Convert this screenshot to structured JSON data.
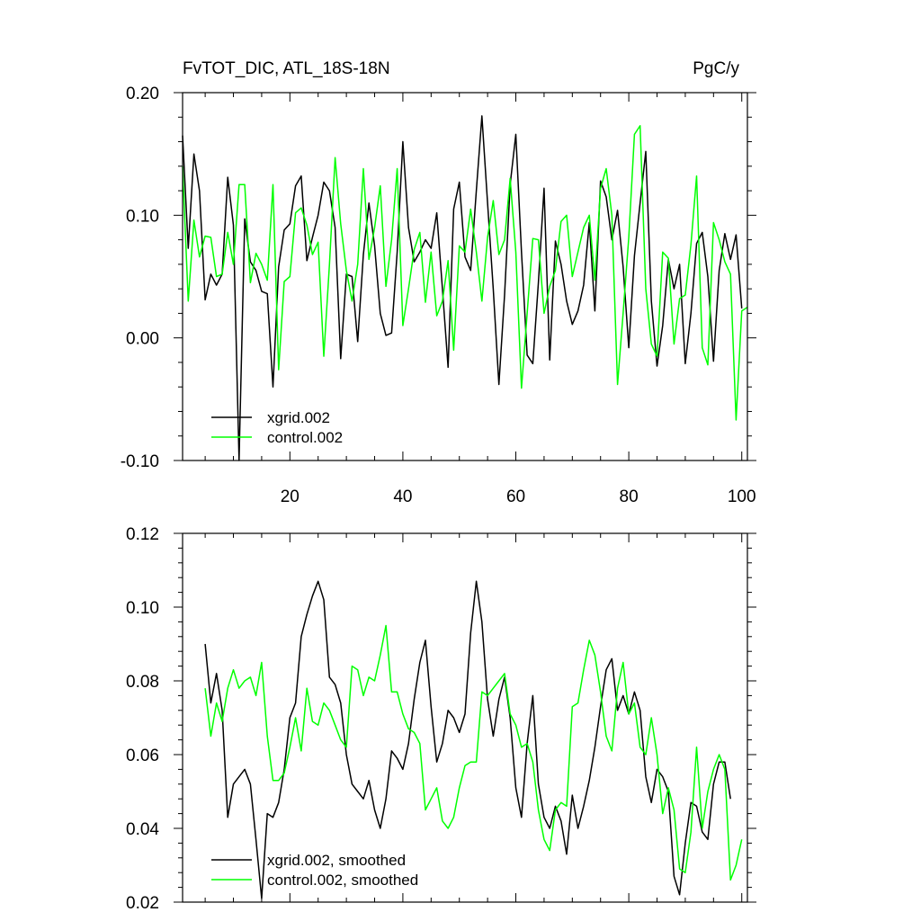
{
  "chart_data": [
    {
      "type": "line",
      "title": "FvTOT_DIC, ATL_18S-18N",
      "units": "PgC/y",
      "xlim": [
        1,
        101
      ],
      "ylim": [
        -0.1,
        0.2
      ],
      "xticks": [
        20,
        40,
        60,
        80,
        100
      ],
      "xtick_labels": [
        "20",
        "40",
        "60",
        "80",
        "100"
      ],
      "yticks": [
        -0.1,
        0.0,
        0.1,
        0.2
      ],
      "ytick_labels": [
        "-0.10",
        "0.00",
        "0.10",
        "0.20"
      ],
      "grid": false,
      "legend_position": "bottom-left",
      "x_start": 1,
      "series": [
        {
          "name": "xgrid.002",
          "color": "#000000",
          "values": [
            0.165,
            0.073,
            0.15,
            0.12,
            0.031,
            0.052,
            0.043,
            0.052,
            0.131,
            0.092,
            -0.1,
            0.097,
            0.062,
            0.055,
            0.038,
            0.036,
            -0.04,
            0.058,
            0.088,
            0.093,
            0.124,
            0.132,
            0.063,
            0.082,
            0.1,
            0.127,
            0.12,
            0.09,
            -0.017,
            0.052,
            0.05,
            -0.003,
            0.068,
            0.11,
            0.075,
            0.02,
            0.002,
            0.004,
            0.07,
            0.16,
            0.09,
            0.062,
            0.07,
            0.08,
            0.073,
            0.102,
            0.04,
            -0.024,
            0.105,
            0.127,
            0.066,
            0.055,
            0.12,
            0.181,
            0.11,
            0.04,
            -0.038,
            0.035,
            0.125,
            0.166,
            0.07,
            -0.014,
            -0.021,
            0.045,
            0.122,
            -0.018,
            0.079,
            0.06,
            0.03,
            0.011,
            0.022,
            0.043,
            0.094,
            0.022,
            0.128,
            0.115,
            0.08,
            0.104,
            0.058,
            -0.008,
            0.067,
            0.11,
            0.152,
            0.03,
            -0.023,
            0.01,
            0.064,
            0.04,
            0.06,
            -0.021,
            0.02,
            0.077,
            0.086,
            0.05,
            -0.019,
            0.055,
            0.085,
            0.064,
            0.084,
            0.024
          ]
        },
        {
          "name": "control.002",
          "color": "#00ff00",
          "values": [
            0.14,
            0.03,
            0.096,
            0.066,
            0.083,
            0.082,
            0.05,
            0.052,
            0.086,
            0.06,
            0.125,
            0.125,
            0.045,
            0.069,
            0.06,
            0.047,
            0.125,
            -0.026,
            0.046,
            0.05,
            0.102,
            0.106,
            0.092,
            0.068,
            0.078,
            -0.015,
            0.06,
            0.147,
            0.093,
            0.055,
            0.03,
            0.06,
            0.138,
            0.064,
            0.09,
            0.124,
            0.042,
            0.08,
            0.138,
            0.01,
            0.04,
            0.072,
            0.086,
            0.029,
            0.07,
            0.018,
            0.03,
            0.063,
            -0.01,
            0.075,
            0.07,
            0.105,
            0.07,
            0.03,
            0.082,
            0.112,
            0.068,
            0.08,
            0.13,
            0.07,
            -0.041,
            0.02,
            0.081,
            0.08,
            0.02,
            0.042,
            0.055,
            0.095,
            0.1,
            0.05,
            0.07,
            0.09,
            0.1,
            0.047,
            0.122,
            0.138,
            0.1,
            -0.038,
            0.02,
            0.082,
            0.166,
            0.173,
            0.04,
            -0.005,
            -0.015,
            0.07,
            0.065,
            -0.005,
            0.032,
            0.035,
            0.076,
            0.132,
            -0.008,
            -0.022,
            0.094,
            0.08,
            0.062,
            0.052,
            -0.067,
            0.022,
            0.025
          ]
        }
      ]
    },
    {
      "type": "line",
      "xlim": [
        1,
        101
      ],
      "ylim": [
        0.02,
        0.12
      ],
      "xticks": [
        20,
        40,
        60,
        80,
        100
      ],
      "xtick_labels": [],
      "yticks": [
        0.02,
        0.04,
        0.06,
        0.08,
        0.1,
        0.12
      ],
      "ytick_labels": [
        "0.02",
        "0.04",
        "0.06",
        "0.08",
        "0.10",
        "0.12"
      ],
      "grid": false,
      "legend_position": "bottom-left",
      "x_start": 5,
      "series": [
        {
          "name": "xgrid.002, smoothed",
          "color": "#000000",
          "values": [
            0.09,
            0.074,
            0.082,
            0.072,
            0.043,
            0.052,
            0.054,
            0.056,
            0.052,
            0.037,
            0.021,
            0.044,
            0.043,
            0.047,
            0.056,
            0.07,
            0.074,
            0.092,
            0.098,
            0.103,
            0.107,
            0.102,
            0.081,
            0.079,
            0.074,
            0.06,
            0.052,
            0.05,
            0.048,
            0.053,
            0.045,
            0.04,
            0.048,
            0.061,
            0.059,
            0.056,
            0.063,
            0.075,
            0.085,
            0.091,
            0.073,
            0.058,
            0.063,
            0.072,
            0.07,
            0.066,
            0.071,
            0.093,
            0.107,
            0.096,
            0.075,
            0.065,
            0.075,
            0.081,
            0.07,
            0.051,
            0.043,
            0.063,
            0.076,
            0.052,
            0.043,
            0.04,
            0.046,
            0.042,
            0.033,
            0.049,
            0.04,
            0.046,
            0.053,
            0.062,
            0.073,
            0.083,
            0.086,
            0.072,
            0.076,
            0.071,
            0.077,
            0.072,
            0.054,
            0.047,
            0.056,
            0.054,
            0.05,
            0.027,
            0.022,
            0.036,
            0.047,
            0.046,
            0.039,
            0.037,
            0.052,
            0.058,
            0.058,
            0.048
          ]
        },
        {
          "name": "control.002, smoothed",
          "color": "#00ff00",
          "values": [
            0.078,
            0.065,
            0.074,
            0.069,
            0.078,
            0.083,
            0.078,
            0.08,
            0.081,
            0.076,
            0.085,
            0.065,
            0.053,
            0.053,
            0.055,
            0.062,
            0.07,
            0.061,
            0.078,
            0.069,
            0.068,
            0.074,
            0.072,
            0.068,
            0.064,
            0.062,
            0.084,
            0.083,
            0.076,
            0.081,
            0.08,
            0.087,
            0.095,
            0.077,
            0.077,
            0.071,
            0.067,
            0.066,
            0.063,
            0.045,
            0.048,
            0.051,
            0.042,
            0.04,
            0.043,
            0.051,
            0.057,
            0.058,
            0.058,
            0.077,
            0.076,
            0.078,
            0.08,
            0.082,
            0.071,
            0.068,
            0.062,
            0.063,
            0.058,
            0.045,
            0.037,
            0.034,
            0.045,
            0.047,
            0.046,
            0.073,
            0.074,
            0.083,
            0.091,
            0.087,
            0.077,
            0.065,
            0.061,
            0.078,
            0.085,
            0.071,
            0.074,
            0.062,
            0.06,
            0.07,
            0.06,
            0.044,
            0.051,
            0.045,
            0.029,
            0.028,
            0.039,
            0.062,
            0.04,
            0.05,
            0.056,
            0.06,
            0.056,
            0.026,
            0.03,
            0.037
          ]
        }
      ]
    }
  ]
}
